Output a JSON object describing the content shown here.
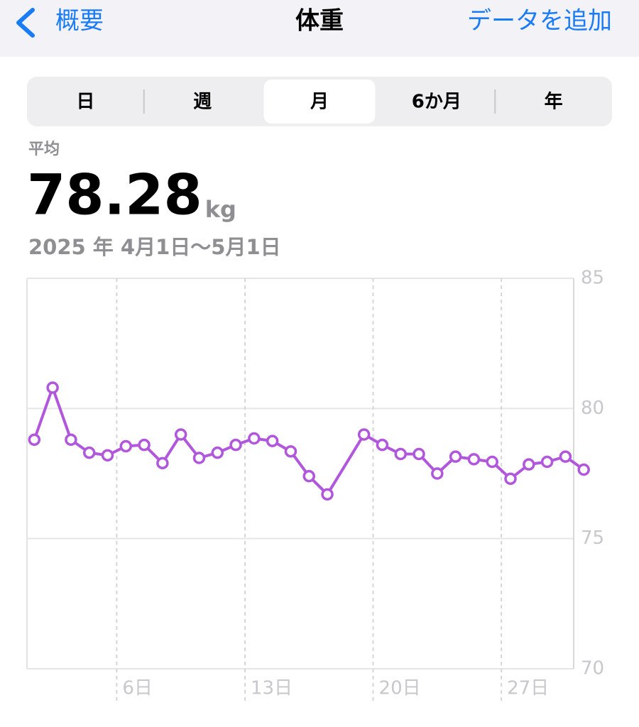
{
  "nav": {
    "back": "概要",
    "title": "体重",
    "action": "データを追加"
  },
  "segments": {
    "items": [
      "日",
      "週",
      "月",
      "6か月",
      "年"
    ],
    "selected": 2
  },
  "summary": {
    "label": "平均",
    "value": 78.28,
    "unit": "kg",
    "range": "2025 年 4月1日〜5月1日"
  },
  "chart_data": {
    "type": "line",
    "x": [
      1,
      2,
      3,
      4,
      5,
      6,
      7,
      8,
      9,
      10,
      11,
      12,
      13,
      14,
      15,
      16,
      17,
      19,
      20,
      21,
      22,
      23,
      24,
      25,
      26,
      27,
      28,
      29,
      30,
      31
    ],
    "series": [
      {
        "color": "#b157dc",
        "values": [
          78.8,
          80.8,
          78.8,
          78.3,
          78.2,
          78.55,
          78.6,
          77.9,
          79.0,
          78.1,
          78.3,
          78.6,
          78.85,
          78.75,
          78.35,
          77.4,
          76.7,
          79.0,
          78.6,
          78.25,
          78.25,
          77.5,
          78.15,
          78.05,
          77.95,
          77.3,
          77.85,
          77.95,
          78.15,
          77.65
        ]
      }
    ],
    "xlim": [
      0.6,
      30.45
    ],
    "xticks": [
      {
        "value": 5.5,
        "label": "6日"
      },
      {
        "value": 12.5,
        "label": "13日"
      },
      {
        "value": 19.5,
        "label": "20日"
      },
      {
        "value": 26.5,
        "label": "27日"
      }
    ],
    "ylim": [
      70,
      85
    ],
    "yticks": [
      70,
      75,
      80,
      85
    ],
    "grid": true
  }
}
